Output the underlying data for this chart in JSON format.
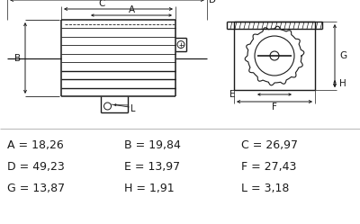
{
  "bg_color": "#ffffff",
  "line_color": "#1a1a1a",
  "text_color": "#1a1a1a",
  "dim_rows": [
    [
      [
        "A",
        "18,26"
      ],
      [
        "B",
        "19,84"
      ],
      [
        "C",
        "26,97"
      ]
    ],
    [
      [
        "D",
        "49,23"
      ],
      [
        "E",
        "13,97"
      ],
      [
        "F",
        "27,43"
      ]
    ],
    [
      [
        "G",
        "13,87"
      ],
      [
        "H",
        "1,91"
      ],
      [
        "L",
        "3,18"
      ]
    ]
  ],
  "font_size_dims": 9.0
}
